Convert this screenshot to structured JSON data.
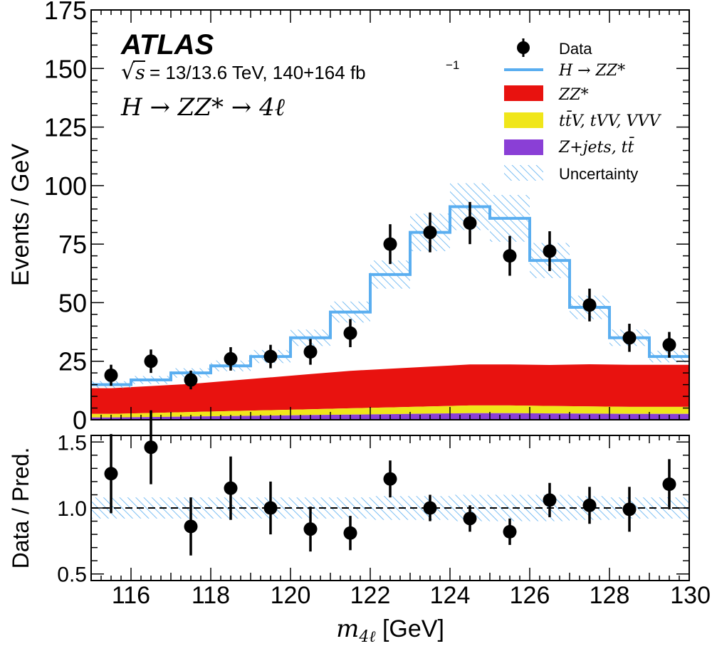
{
  "figure": {
    "experiment": "ATLAS",
    "energy_label": "= 13/13.6 TeV, 140+164 fb",
    "energy_sup": "−1",
    "sqrt_s_symbol": "s",
    "channel_label": "H → ZZ* → 4ℓ",
    "colors": {
      "signal_line": "#5aaef0",
      "zz": "#e8120f",
      "ttv": "#f0e61a",
      "zjets": "#8a3fd6",
      "uncertainty": "#5aaef0",
      "data": "#000000"
    }
  },
  "chart_data": [
    {
      "type": "line",
      "panel": "main",
      "ylabel": "Events / GeV",
      "xlim": [
        115,
        130
      ],
      "ylim": [
        0,
        175
      ],
      "y_ticks": [
        0,
        25,
        50,
        75,
        100,
        125,
        150,
        175
      ],
      "y_tick_labels": [
        "0",
        "25",
        "50",
        "75",
        "100",
        "125",
        "150",
        "175"
      ],
      "bin_edges": [
        115,
        116,
        117,
        118,
        119,
        120,
        121,
        122,
        123,
        124,
        125,
        126,
        127,
        128,
        129,
        130
      ],
      "legend_position": "top-right",
      "legend": [
        {
          "key": "data",
          "label": "Data"
        },
        {
          "key": "signal",
          "label": "H → ZZ*"
        },
        {
          "key": "zz",
          "label": "ZZ*"
        },
        {
          "key": "ttv",
          "label": "tt̄V, tVV, VVV"
        },
        {
          "key": "zjets",
          "label": "Z+jets, tt̄"
        },
        {
          "key": "unc",
          "label": "Uncertainty"
        }
      ],
      "series": [
        {
          "name": "Data",
          "x": [
            115.5,
            116.5,
            117.5,
            118.5,
            119.5,
            120.5,
            121.5,
            122.5,
            123.5,
            124.5,
            125.5,
            126.5,
            127.5,
            128.5,
            129.5
          ],
          "values": [
            19,
            25,
            17,
            26,
            27,
            29,
            37,
            75,
            80,
            84,
            70,
            72,
            49,
            35,
            32
          ],
          "err_low": [
            4.5,
            5,
            4,
            5,
            5,
            5.5,
            6,
            8.5,
            8.5,
            9,
            8.5,
            8.5,
            7,
            6,
            5.5
          ],
          "err_high": [
            4.5,
            5,
            4,
            5,
            5,
            5.5,
            6,
            8.5,
            8.5,
            9,
            8.5,
            8.5,
            7,
            6,
            5.5
          ]
        },
        {
          "name": "H → ZZ*",
          "values": [
            15,
            17,
            20,
            23,
            27,
            35,
            46,
            62,
            80,
            91,
            86,
            68,
            48,
            35,
            27
          ]
        },
        {
          "name": "ZZ*",
          "values": [
            11,
            11.5,
            12,
            13,
            14,
            15,
            16,
            16.5,
            17,
            17.5,
            17.5,
            17.5,
            18,
            18,
            18
          ]
        },
        {
          "name": "tt̄V, tVV, VVV",
          "values": [
            1.5,
            1.7,
            1.9,
            2.1,
            2.3,
            2.5,
            2.7,
            2.9,
            3.1,
            3.3,
            3.3,
            3.2,
            3.1,
            3.0,
            3.0
          ]
        },
        {
          "name": "Z+jets, tt̄",
          "values": [
            1.0,
            1.2,
            1.4,
            1.6,
            1.8,
            2.0,
            2.2,
            2.4,
            2.6,
            2.8,
            2.8,
            2.7,
            2.6,
            2.5,
            2.5
          ]
        },
        {
          "name": "Uncertainty",
          "values": [
            1.5,
            1.7,
            2,
            2.3,
            2.8,
            3.5,
            4.5,
            6,
            8,
            10,
            10,
            7.5,
            5,
            3.5,
            2.5
          ]
        }
      ]
    },
    {
      "type": "scatter",
      "panel": "ratio",
      "xlabel": "m4ℓ [GeV]",
      "xlabel_main": "m",
      "xlabel_sub": "4ℓ",
      "xlabel_unit": " [GeV]",
      "ylabel": "Data / Pred.",
      "xlim": [
        115,
        130
      ],
      "ylim": [
        0.45,
        1.55
      ],
      "reference_line": 1.0,
      "y_ticks": [
        0.5,
        1.0,
        1.5
      ],
      "y_tick_labels": [
        "0.5",
        "1.0",
        "1.5"
      ],
      "x_ticks": [
        116,
        118,
        120,
        122,
        124,
        126,
        128,
        130
      ],
      "x_tick_labels": [
        "116",
        "118",
        "120",
        "122",
        "124",
        "126",
        "128",
        "130"
      ],
      "band_edges": [
        115,
        116,
        117,
        118,
        119,
        120,
        121,
        122,
        123,
        124,
        125,
        126,
        127,
        128,
        129,
        130
      ],
      "band_half_width": [
        0.08,
        0.08,
        0.08,
        0.08,
        0.08,
        0.08,
        0.08,
        0.09,
        0.09,
        0.1,
        0.1,
        0.1,
        0.09,
        0.08,
        0.08
      ],
      "series": [
        {
          "name": "Data / Pred.",
          "x": [
            115.5,
            116.5,
            117.5,
            118.5,
            119.5,
            120.5,
            121.5,
            122.5,
            123.5,
            124.5,
            125.5,
            126.5,
            127.5,
            128.5,
            129.5
          ],
          "values": [
            1.26,
            1.46,
            0.86,
            1.15,
            1.0,
            0.84,
            0.81,
            1.22,
            1.0,
            0.92,
            0.82,
            1.06,
            1.02,
            0.99,
            1.18
          ],
          "err_low": [
            0.3,
            0.28,
            0.22,
            0.24,
            0.2,
            0.17,
            0.13,
            0.14,
            0.1,
            0.1,
            0.1,
            0.13,
            0.14,
            0.17,
            0.19
          ],
          "err_high": [
            0.3,
            0.28,
            0.22,
            0.24,
            0.2,
            0.17,
            0.13,
            0.14,
            0.1,
            0.1,
            0.1,
            0.13,
            0.14,
            0.17,
            0.19
          ]
        }
      ]
    }
  ]
}
